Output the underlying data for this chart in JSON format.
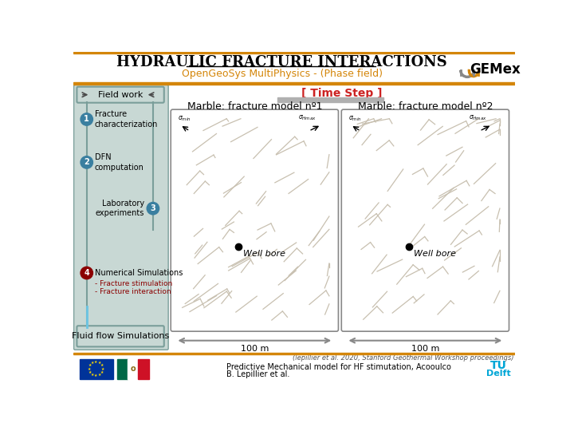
{
  "title": "HYDRAULIC FRACTURE INTERACTIONS",
  "subtitle": "OpenGeoSys MultiPhysics - (Phase field)",
  "bg_color": "#ffffff",
  "orange_bar_color": "#D4860A",
  "sidebar_bg": "#c8d8d4",
  "sidebar_border": "#7a9e9a",
  "timestep_label": "[ Time Step ]",
  "model1_title": "Marble: fracture model nº1",
  "model2_title": "Marble: fracture model nº2",
  "wellbore_label": "Well bore",
  "scale_label": "100 m",
  "flow_label": "Fluid flow Simulations",
  "reference": "(lepillier et al. 2020, Stanford Geothermal Workshop proceedings)",
  "bottom_text1": "Predictive Mechanical model for HF stimutation, Acooulco",
  "bottom_text2": "B. Lepillier et al.",
  "fieldwork_label": "Field work",
  "item1_num": "1",
  "item1_text": "Fracture\ncharacterization",
  "item2_num": "2",
  "item2_text": "DFN\ncomputation",
  "item3_num": "3",
  "item3_text": "Laboratory\nexperiments",
  "item4_num": "4",
  "item4_text": "Numerical Simulations",
  "item4_sub1": "- Fracture stimulation",
  "item4_sub2": "- Fracture interaction",
  "circle_color_blue": "#3a7fa0",
  "circle_color_red": "#8B0000",
  "fracture_color": "#c8c0b0",
  "arrow_color": "#888888",
  "gemex_text": "GEMex",
  "tudelft_text": "TUDelft"
}
